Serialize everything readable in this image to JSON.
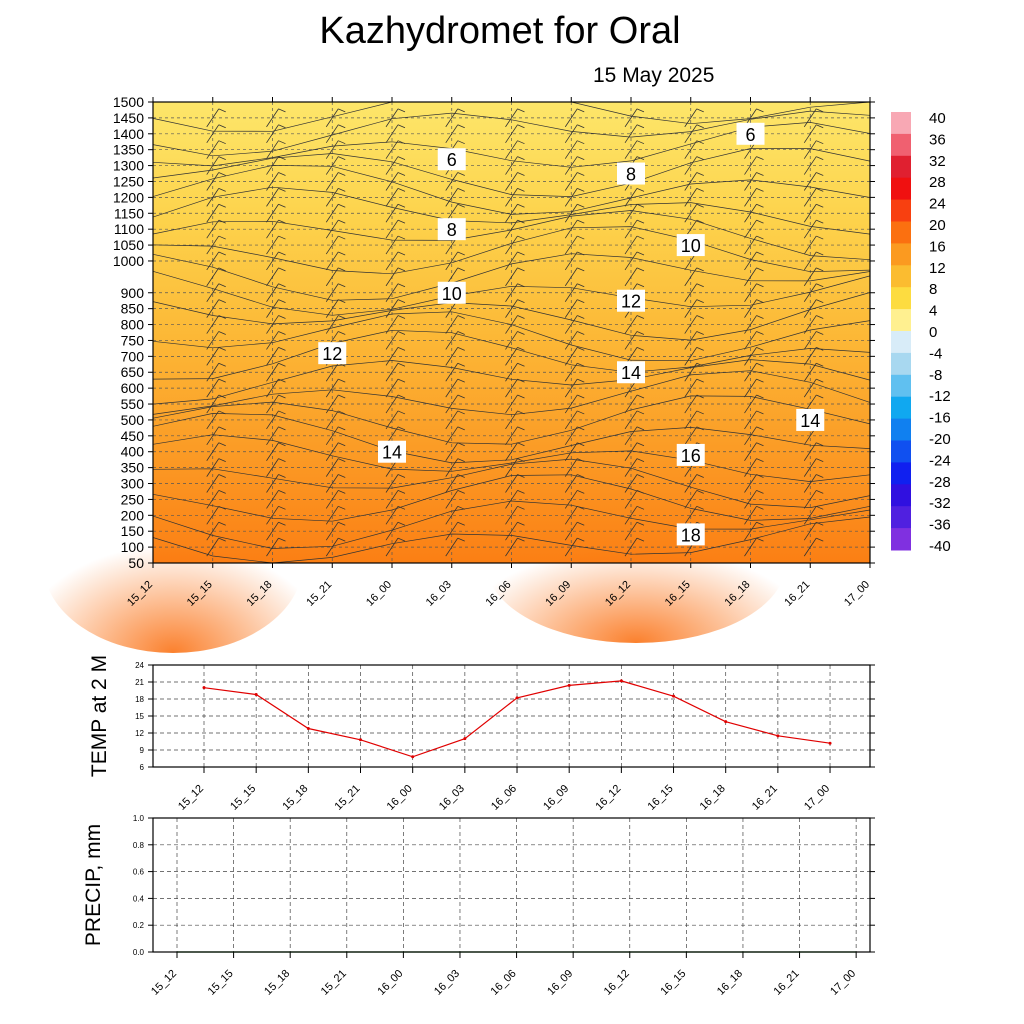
{
  "title": "Kazhydromet  for Oral",
  "subtitle": "15 May 2025",
  "time_labels": [
    "15_12",
    "15_15",
    "15_18",
    "15_21",
    "16_00",
    "16_03",
    "16_06",
    "16_09",
    "16_12",
    "16_15",
    "16_18",
    "16_21",
    "17_00"
  ],
  "chart_data": [
    {
      "type": "heatmap",
      "title": "Kazhydromet  for Oral",
      "subtitle": "15 May 2025",
      "x": [
        "15_12",
        "15_15",
        "15_18",
        "15_21",
        "16_00",
        "16_03",
        "16_06",
        "16_09",
        "16_12",
        "16_15",
        "16_18",
        "16_21",
        "17_00"
      ],
      "y_ticks": [
        50,
        100,
        150,
        200,
        250,
        300,
        350,
        400,
        450,
        500,
        550,
        600,
        650,
        700,
        750,
        800,
        850,
        900,
        1000,
        1050,
        1100,
        1150,
        1200,
        1250,
        1300,
        1350,
        1400,
        1450,
        1500
      ],
      "ylim": [
        50,
        1500
      ],
      "grid": true,
      "colorbar": {
        "labels": [
          "40",
          "36",
          "32",
          "28",
          "24",
          "20",
          "16",
          "12",
          "8",
          "4",
          "0",
          "-4",
          "-8",
          "-12",
          "-16",
          "-20",
          "-24",
          "-28",
          "-32",
          "-36",
          "-40"
        ],
        "range": [
          -40,
          40
        ],
        "colors": [
          "#f8a8b4",
          "#f06070",
          "#e02030",
          "#f01010",
          "#f84010",
          "#fb7010",
          "#fb9a20",
          "#fbbc30",
          "#fddc40",
          "#fff090",
          "#d8ecf8",
          "#a8d8f0",
          "#60c0f0",
          "#10a8f0",
          "#1080f0",
          "#1050f0",
          "#1020f0",
          "#3010e0",
          "#5020e0",
          "#8030e0"
        ]
      },
      "contour_labels": [
        {
          "text": "6",
          "time": "16_03",
          "level": 1320
        },
        {
          "text": "6",
          "time": "16_18",
          "level": 1400
        },
        {
          "text": "8",
          "time": "16_03",
          "level": 1100
        },
        {
          "text": "8",
          "time": "16_12",
          "level": 1275
        },
        {
          "text": "10",
          "time": "16_03",
          "level": 900
        },
        {
          "text": "10",
          "time": "16_15",
          "level": 1050
        },
        {
          "text": "12",
          "time": "15_21",
          "level": 710
        },
        {
          "text": "12",
          "time": "16_12",
          "level": 875
        },
        {
          "text": "14",
          "time": "16_00",
          "level": 400
        },
        {
          "text": "14",
          "time": "16_12",
          "level": 650
        },
        {
          "text": "14",
          "time": "16_21",
          "level": 500
        },
        {
          "text": "16",
          "time": "16_15",
          "level": 390
        },
        {
          "text": "18",
          "time": "16_15",
          "level": 140
        }
      ]
    },
    {
      "type": "line",
      "ylabel": "TEMP at 2 M",
      "categories": [
        "15_12",
        "15_15",
        "15_18",
        "15_21",
        "16_00",
        "16_03",
        "16_06",
        "16_09",
        "16_12",
        "16_15",
        "16_18",
        "16_21",
        "17_00"
      ],
      "values": [
        20,
        18.8,
        12.8,
        10.8,
        7.8,
        11,
        18.2,
        20.4,
        21.2,
        18.5,
        14,
        11.5,
        10.2
      ],
      "y_ticks": [
        "6",
        "9",
        "12",
        "15",
        "18",
        "21",
        "24"
      ],
      "ylim": [
        6,
        24
      ],
      "color": "#e00000",
      "grid": true
    },
    {
      "type": "line",
      "ylabel": "PRECIP, mm",
      "categories": [
        "15_12",
        "15_15",
        "15_18",
        "15_21",
        "16_00",
        "16_03",
        "16_06",
        "16_09",
        "16_12",
        "16_15",
        "16_18",
        "16_21",
        "17_00"
      ],
      "values": [
        0,
        0,
        0,
        0,
        0,
        0,
        0,
        0,
        0,
        0,
        0,
        0,
        0
      ],
      "y_ticks": [
        "0.0",
        "0.2",
        "0.4",
        "0.6",
        "0.8",
        "1.0"
      ],
      "ylim": [
        0,
        1
      ],
      "color": "#007000",
      "grid": true
    }
  ]
}
